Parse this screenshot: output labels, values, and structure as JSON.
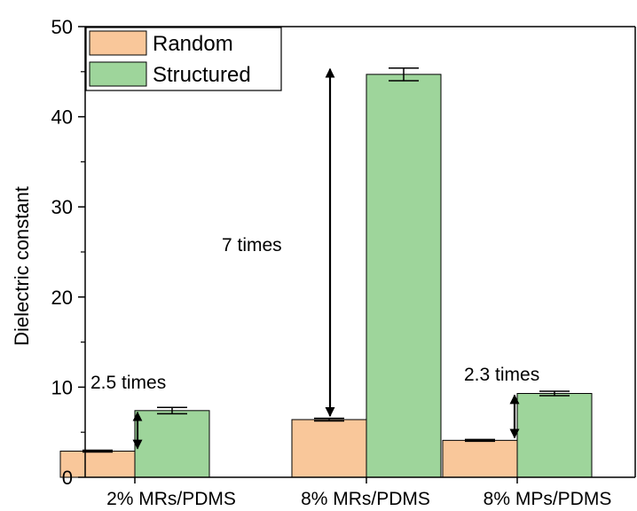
{
  "chart_data": {
    "type": "bar",
    "categories": [
      "2% MRs/PDMS",
      "8% MRs/PDMS",
      "8% MPs/PDMS"
    ],
    "series": [
      {
        "name": "Random",
        "values": [
          2.9,
          6.4,
          4.1
        ],
        "errors": [
          0.1,
          0.15,
          0.1
        ],
        "color": "#f9c79a"
      },
      {
        "name": "Structured",
        "values": [
          7.4,
          44.7,
          9.3
        ],
        "errors": [
          0.35,
          0.7,
          0.25
        ],
        "color": "#9ed59b"
      }
    ],
    "xlabel": "",
    "ylabel": "Dielectric constant",
    "ylim": [
      0,
      50
    ],
    "yticks": [
      0,
      10,
      20,
      30,
      40,
      50
    ],
    "legend_position": "top-left",
    "grid": false,
    "annotations": [
      {
        "text": "2.5 times",
        "category": 0,
        "arrow_from": 3.0,
        "arrow_to": 7.4
      },
      {
        "text": "7 times",
        "category": 1,
        "arrow_from": 6.6,
        "arrow_to": 45.5
      },
      {
        "text": "2.3 times",
        "category": 2,
        "arrow_from": 4.2,
        "arrow_to": 9.3
      }
    ]
  }
}
